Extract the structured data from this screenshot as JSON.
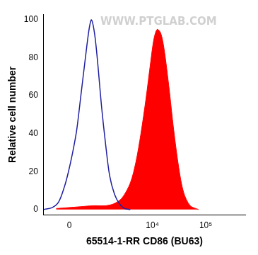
{
  "chart_data": {
    "type": "line",
    "xlabel": "65514-1-RR CD86 (BU63)",
    "ylabel": "Relative cell number",
    "annotations": [
      "WWW.PTGLAB.COM"
    ],
    "xlim": [
      -750,
      550000
    ],
    "xticks": [
      0,
      {
        "value": 10000,
        "label": "10⁴"
      },
      {
        "value": 100000,
        "label": "10⁵"
      }
    ],
    "ylim": [
      -3,
      103
    ],
    "yticks": [
      0,
      20,
      40,
      60,
      80,
      100
    ],
    "grid": false,
    "series": [
      {
        "type": "area",
        "color": "#ff0000",
        "x": [
          -334,
          -20,
          289,
          679,
          1267,
          1853,
          2667,
          3850,
          4905,
          6094,
          7561,
          9319,
          10714,
          12332,
          14341,
          16517,
          20367,
          25110,
          31248,
          38502,
          51057,
          73098
        ],
        "values": [
          0.5,
          1,
          1.5,
          2,
          2,
          3,
          6,
          14,
          25,
          40,
          58,
          78,
          90,
          95,
          93,
          85,
          65,
          42,
          22,
          9,
          2,
          0
        ]
      },
      {
        "type": "line",
        "color": "#1f1fa0",
        "x": [
          -745,
          -455,
          -266,
          -119,
          -20,
          80,
          181,
          289,
          405,
          534,
          617,
          742,
          884,
          1043,
          1267,
          1534,
          1919,
          2389,
          2974,
          3850
        ],
        "values": [
          0,
          1,
          4,
          12,
          20,
          30,
          42,
          60,
          78,
          95,
          100,
          92,
          75,
          55,
          35,
          18,
          8,
          3,
          0.5,
          0
        ]
      }
    ]
  }
}
